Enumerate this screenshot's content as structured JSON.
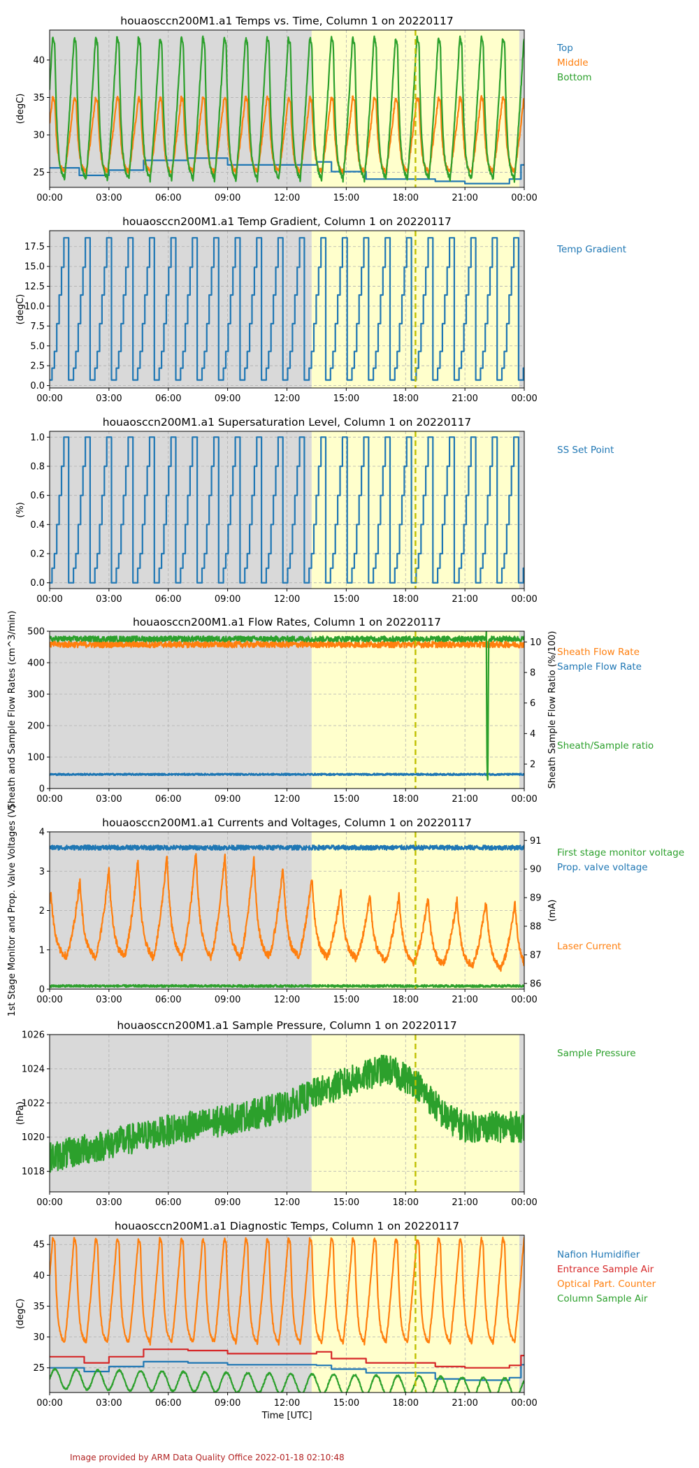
{
  "colors": {
    "blue": "#1f77b4",
    "orange": "#ff7f0e",
    "green": "#2ca02c",
    "red": "#d62728",
    "night_shade": "#d9d9d9",
    "day_shade": "#ffffcc",
    "marker": "#bfbf00",
    "credit": "#b22222"
  },
  "credit": "Image provided by ARM Data Quality Office 2022-01-18 02:10:48",
  "shading": {
    "night_until": "13:15",
    "day_until": "23:45"
  },
  "marker_time": "18:30",
  "chart_data": [
    {
      "type": "line",
      "title": "houaosccn200M1.a1 Temps vs. Time, Column 1 on 20220117",
      "ylabel": "(degC)",
      "xlabel": "",
      "ylim": [
        23,
        44
      ],
      "yticks": [
        25,
        30,
        35,
        40
      ],
      "xticks": [
        "00:00",
        "03:00",
        "06:00",
        "09:00",
        "12:00",
        "15:00",
        "18:00",
        "21:00",
        "00:00"
      ],
      "grid": true,
      "legend_placement": "right",
      "series": [
        {
          "name": "Top",
          "color": "#1f77b4",
          "kind": "steps",
          "points": [
            [
              "00:00",
              25.6
            ],
            [
              "01:30",
              24.6
            ],
            [
              "03:00",
              25.3
            ],
            [
              "04:45",
              26.6
            ],
            [
              "07:00",
              26.9
            ],
            [
              "09:00",
              26.0
            ],
            [
              "13:30",
              26.4
            ],
            [
              "14:15",
              25.1
            ],
            [
              "16:00",
              24.1
            ],
            [
              "19:30",
              23.8
            ],
            [
              "21:00",
              23.5
            ],
            [
              "23:15",
              24.1
            ],
            [
              "23:50",
              26.0
            ]
          ]
        },
        {
          "name": "Middle",
          "color": "#ff7f0e",
          "kind": "cycle",
          "period": 65,
          "low": 25,
          "high": 35
        },
        {
          "name": "Bottom",
          "color": "#2ca02c",
          "kind": "cycle",
          "period": 65,
          "low": 24,
          "high": 43
        }
      ]
    },
    {
      "type": "line",
      "title": "houaosccn200M1.a1 Temp Gradient, Column 1 on 20220117",
      "ylabel": "(degC)",
      "xlabel": "",
      "ylim": [
        -0.3,
        19.5
      ],
      "yticks": [
        0.0,
        2.5,
        5.0,
        7.5,
        10.0,
        12.5,
        15.0,
        17.5
      ],
      "xticks": [
        "00:00",
        "03:00",
        "06:00",
        "09:00",
        "12:00",
        "15:00",
        "18:00",
        "21:00",
        "00:00"
      ],
      "grid": true,
      "legend_placement": "right",
      "series": [
        {
          "name": "Temp Gradient",
          "color": "#1f77b4",
          "kind": "staircase",
          "period": 65,
          "levels": [
            0.7,
            2.2,
            4.3,
            7.8,
            11.4,
            14.9,
            18.6
          ]
        }
      ]
    },
    {
      "type": "line",
      "title": "houaosccn200M1.a1 Supersaturation Level, Column 1 on 20220117",
      "ylabel": "(%)",
      "xlabel": "",
      "ylim": [
        -0.04,
        1.04
      ],
      "yticks": [
        0.0,
        0.2,
        0.4,
        0.6,
        0.8,
        1.0
      ],
      "xticks": [
        "00:00",
        "03:00",
        "06:00",
        "09:00",
        "12:00",
        "15:00",
        "18:00",
        "21:00",
        "00:00"
      ],
      "grid": true,
      "legend_placement": "right",
      "series": [
        {
          "name": "SS Set Point",
          "color": "#1f77b4",
          "kind": "staircase",
          "period": 65,
          "levels": [
            0.0,
            0.1,
            0.2,
            0.4,
            0.6,
            0.8,
            1.0
          ]
        }
      ]
    },
    {
      "type": "line",
      "title": "houaosccn200M1.a1 Flow Rates, Column 1 on 20220117",
      "ylabel": "Sheath and Sample Flow Rates (cm^3/min)",
      "ylim": [
        0,
        500
      ],
      "yticks": [
        0,
        100,
        200,
        300,
        400,
        500
      ],
      "y2label": "Sheath Sample Flow Ratio (%/100)",
      "y2lim": [
        0.4,
        10.7
      ],
      "y2ticks": [
        2,
        4,
        6,
        8,
        10
      ],
      "xlabel": "",
      "xticks": [
        "00:00",
        "03:00",
        "06:00",
        "09:00",
        "12:00",
        "15:00",
        "18:00",
        "21:00",
        "00:00"
      ],
      "grid": true,
      "legend_placement": "right",
      "series": [
        {
          "name": "Sheath Flow Rate",
          "color": "#ff7f0e",
          "axis": "left",
          "kind": "noise",
          "base": 458,
          "amp": 10
        },
        {
          "name": "Sample Flow Rate",
          "color": "#1f77b4",
          "axis": "left",
          "kind": "noise",
          "base": 45,
          "amp": 3
        },
        {
          "name": "Sheath/Sample ratio",
          "color": "#2ca02c",
          "axis": "right",
          "kind": "noise_drop",
          "base": 10.2,
          "amp": 0.18,
          "drop_start": "22:05",
          "drop_end": "22:12",
          "drop_min": 0.8
        }
      ]
    },
    {
      "type": "line",
      "title": "houaosccn200M1.a1 Currents and Voltages, Column 1 on 20220117",
      "ylabel": "1st Stage Monitor and Prop. Valve Voltages (V)",
      "ylim": [
        0,
        4
      ],
      "yticks": [
        0,
        1,
        2,
        3,
        4
      ],
      "y2label": "(mA)",
      "y2lim": [
        85.8,
        91.3
      ],
      "y2ticks": [
        86,
        87,
        88,
        89,
        90,
        91
      ],
      "xlabel": "",
      "xticks": [
        "00:00",
        "03:00",
        "06:00",
        "09:00",
        "12:00",
        "15:00",
        "18:00",
        "21:00",
        "00:00"
      ],
      "grid": true,
      "legend_placement": "right",
      "series": [
        {
          "name": "First stage monitor voltage",
          "color": "#2ca02c",
          "axis": "left",
          "kind": "noise",
          "base": 0.08,
          "amp": 0.03
        },
        {
          "name": "Prop. valve voltage",
          "color": "#1f77b4",
          "axis": "left",
          "kind": "noise",
          "base": 3.6,
          "amp": 0.06
        },
        {
          "name": "Laser Current",
          "color": "#ff7f0e",
          "axis": "right",
          "kind": "laser",
          "period": 88
        }
      ]
    },
    {
      "type": "line",
      "title": "houaosccn200M1.a1 Sample Pressure, Column 1 on 20220117",
      "ylabel": "(hPa)",
      "xlabel": "",
      "ylim": [
        1016.8,
        1026
      ],
      "yticks": [
        1018,
        1020,
        1022,
        1024,
        1026
      ],
      "xticks": [
        "00:00",
        "03:00",
        "06:00",
        "09:00",
        "12:00",
        "15:00",
        "18:00",
        "21:00",
        "00:00"
      ],
      "grid": true,
      "legend_placement": "right",
      "series": [
        {
          "name": "Sample Pressure",
          "color": "#2ca02c",
          "kind": "pressure",
          "trend": [
            [
              "00:00",
              1018.8
            ],
            [
              "03:00",
              1019.6
            ],
            [
              "06:00",
              1020.4
            ],
            [
              "09:00",
              1021.0
            ],
            [
              "12:00",
              1021.8
            ],
            [
              "13:30",
              1022.6
            ],
            [
              "15:00",
              1023.2
            ],
            [
              "17:00",
              1024.0
            ],
            [
              "18:30",
              1023.2
            ],
            [
              "20:00",
              1021.2
            ],
            [
              "21:00",
              1020.6
            ],
            [
              "23:59",
              1020.6
            ]
          ],
          "amp": 0.9
        }
      ]
    },
    {
      "type": "line",
      "title": "houaosccn200M1.a1 Diagnostic Temps, Column 1 on 20220117",
      "ylabel": "(degC)",
      "xlabel": "Time [UTC]",
      "ylim": [
        21,
        46.5
      ],
      "yticks": [
        25,
        30,
        35,
        40,
        45
      ],
      "xticks": [
        "00:00",
        "03:00",
        "06:00",
        "09:00",
        "12:00",
        "15:00",
        "18:00",
        "21:00",
        "00:00"
      ],
      "grid": true,
      "legend_placement": "right",
      "series": [
        {
          "name": "Nafion Humidifier",
          "color": "#1f77b4",
          "kind": "steps",
          "points": [
            [
              "00:00",
              25.0
            ],
            [
              "01:45",
              24.4
            ],
            [
              "03:00",
              25.2
            ],
            [
              "04:45",
              26.0
            ],
            [
              "07:00",
              25.8
            ],
            [
              "09:00",
              25.5
            ],
            [
              "13:30",
              25.4
            ],
            [
              "14:15",
              24.8
            ],
            [
              "16:00",
              24.2
            ],
            [
              "19:30",
              23.2
            ],
            [
              "21:00",
              23.0
            ],
            [
              "23:15",
              23.4
            ],
            [
              "23:50",
              25.5
            ]
          ]
        },
        {
          "name": "Entrance Sample Air",
          "color": "#d62728",
          "kind": "steps",
          "points": [
            [
              "00:00",
              26.8
            ],
            [
              "01:45",
              25.8
            ],
            [
              "03:00",
              26.8
            ],
            [
              "04:45",
              28.0
            ],
            [
              "07:00",
              27.8
            ],
            [
              "09:00",
              27.3
            ],
            [
              "13:30",
              27.6
            ],
            [
              "14:15",
              26.5
            ],
            [
              "16:00",
              25.8
            ],
            [
              "19:30",
              25.2
            ],
            [
              "21:00",
              25.0
            ],
            [
              "23:15",
              25.4
            ],
            [
              "23:50",
              27.0
            ]
          ]
        },
        {
          "name": "Optical Part. Counter",
          "color": "#ff7f0e",
          "kind": "cycle",
          "period": 65,
          "low": 29,
          "high": 46
        },
        {
          "name": "Column Sample Air",
          "color": "#2ca02c",
          "kind": "wave",
          "period": 65,
          "base": 23.2,
          "amp": 1.6,
          "trend_end": -1.5
        }
      ]
    }
  ]
}
